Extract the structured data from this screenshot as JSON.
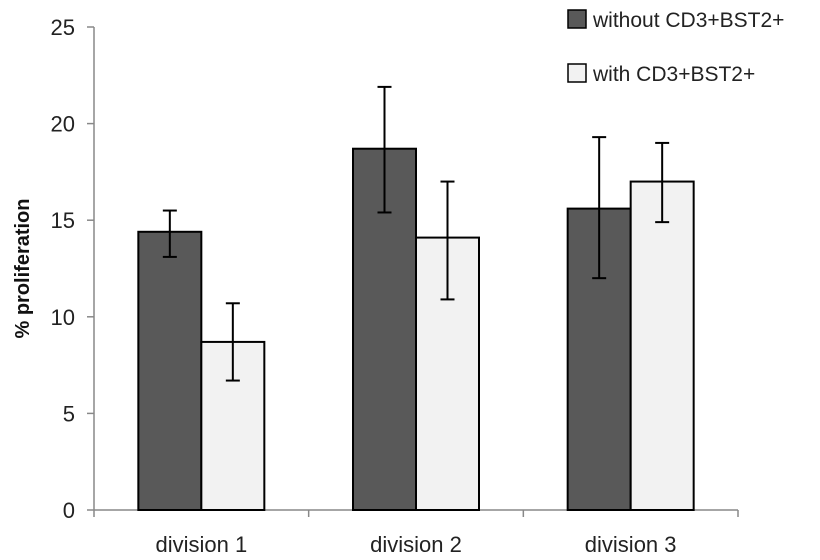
{
  "chart_data": {
    "type": "bar",
    "title": "",
    "xlabel": "",
    "ylabel": "% proliferation",
    "ylim": [
      0,
      25
    ],
    "yticks": [
      0,
      5,
      10,
      15,
      20,
      25
    ],
    "categories": [
      "division 1",
      "division 2",
      "division 3"
    ],
    "series": [
      {
        "name": "without CD3+BST2+",
        "color": "#595959",
        "values": [
          14.4,
          18.7,
          15.6
        ],
        "error_low": [
          13.1,
          15.4,
          12.0
        ],
        "error_high": [
          15.5,
          21.9,
          19.3
        ]
      },
      {
        "name": "with CD3+BST2+",
        "color": "#f2f2f2",
        "values": [
          8.7,
          14.1,
          17.0
        ],
        "error_low": [
          6.7,
          10.9,
          14.9
        ],
        "error_high": [
          10.7,
          17.0,
          19.0
        ]
      }
    ],
    "grid": false,
    "legend_position": "top-right"
  }
}
